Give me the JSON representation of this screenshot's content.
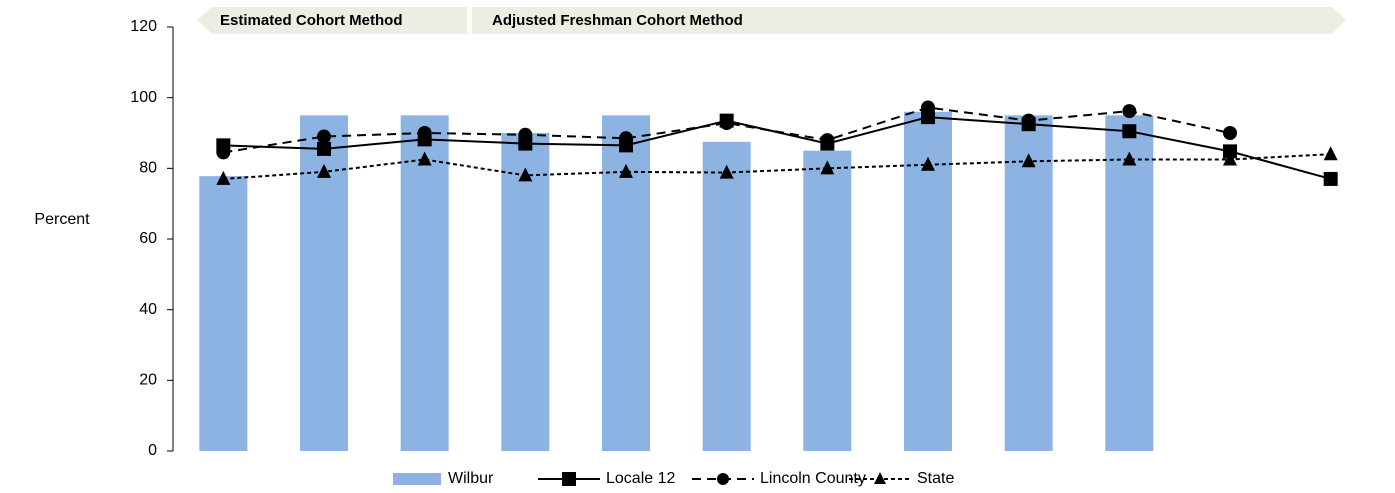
{
  "chart_data": {
    "type": "bar",
    "y_label": "Percent",
    "annotations": [
      "Estimated Cohort Method",
      "Adjusted Freshman Cohort Method"
    ],
    "categories": [
      null,
      null,
      null,
      null,
      null,
      null,
      null,
      null,
      null,
      null,
      null,
      null
    ],
    "series": [
      {
        "name": "Wilbur",
        "type": "bar",
        "color": "#8db3e2",
        "values": [
          77.8,
          95,
          95,
          90,
          95,
          87.5,
          85,
          96,
          95,
          95,
          null,
          null
        ]
      },
      {
        "name": "Locale 12",
        "type": "line",
        "color": "#000000",
        "marker": "square",
        "dash": "solid",
        "values": [
          86.5,
          85.5,
          88.2,
          87,
          86.5,
          93.5,
          87,
          94.5,
          92.5,
          90.5,
          84.8,
          77
        ]
      },
      {
        "name": "Lincoln County",
        "type": "line",
        "color": "#000000",
        "marker": "circle",
        "dash": "dashed",
        "values": [
          84.5,
          89,
          90,
          89.5,
          88.5,
          92.8,
          88,
          97.2,
          93.5,
          96.2,
          90,
          null
        ]
      },
      {
        "name": "State",
        "type": "line",
        "color": "#000000",
        "marker": "triangle",
        "dash": "dotted",
        "values": [
          77,
          79,
          82.5,
          78,
          79,
          78.8,
          80,
          81,
          82,
          82.5,
          82.5,
          84
        ]
      }
    ],
    "ylim": [
      0,
      120
    ],
    "yticks": [
      0,
      20,
      40,
      60,
      80,
      100,
      120
    ],
    "grid": false,
    "legend": "bottom"
  }
}
